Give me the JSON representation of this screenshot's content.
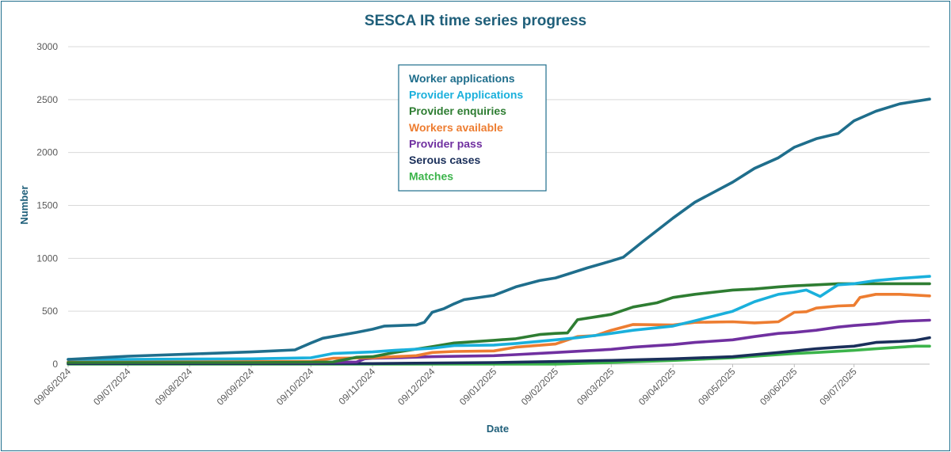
{
  "chart_data": {
    "type": "line",
    "title": "SESCA IR  time series progress",
    "xlabel": "Date",
    "ylabel": "Number",
    "ylim": [
      0,
      3000
    ],
    "yticks": [
      0,
      500,
      1000,
      1500,
      2000,
      2500,
      3000
    ],
    "xlim": [
      "09/06/2024",
      "16/08/2025"
    ],
    "xticks": [
      "09/06/2024",
      "09/07/2024",
      "09/08/2024",
      "09/09/2024",
      "09/10/2024",
      "09/11/2024",
      "09/12/2024",
      "09/01/2025",
      "09/02/2025",
      "09/03/2025",
      "09/04/2025",
      "09/05/2025",
      "09/06/2025",
      "09/07/2025"
    ],
    "grid": "horizontal",
    "legend_position": "top-center",
    "series": [
      {
        "name": "Worker applications",
        "color": "#1f6e8c",
        "points": [
          [
            "09/06/2024",
            45
          ],
          [
            "09/07/2024",
            75
          ],
          [
            "09/08/2024",
            95
          ],
          [
            "09/09/2024",
            115
          ],
          [
            "01/10/2024",
            135
          ],
          [
            "09/10/2024",
            200
          ],
          [
            "15/10/2024",
            245
          ],
          [
            "01/11/2024",
            300
          ],
          [
            "09/11/2024",
            330
          ],
          [
            "15/11/2024",
            360
          ],
          [
            "01/12/2024",
            370
          ],
          [
            "05/12/2024",
            395
          ],
          [
            "09/12/2024",
            490
          ],
          [
            "15/12/2024",
            525
          ],
          [
            "20/12/2024",
            570
          ],
          [
            "25/12/2024",
            610
          ],
          [
            "09/01/2025",
            650
          ],
          [
            "20/01/2025",
            730
          ],
          [
            "01/02/2025",
            790
          ],
          [
            "09/02/2025",
            815
          ],
          [
            "15/02/2025",
            850
          ],
          [
            "25/02/2025",
            910
          ],
          [
            "09/03/2025",
            975
          ],
          [
            "15/03/2025",
            1010
          ],
          [
            "25/03/2025",
            1160
          ],
          [
            "09/04/2025",
            1380
          ],
          [
            "20/04/2025",
            1530
          ],
          [
            "01/05/2025",
            1640
          ],
          [
            "09/05/2025",
            1720
          ],
          [
            "20/05/2025",
            1850
          ],
          [
            "01/06/2025",
            1950
          ],
          [
            "09/06/2025",
            2050
          ],
          [
            "20/06/2025",
            2130
          ],
          [
            "01/07/2025",
            2180
          ],
          [
            "09/07/2025",
            2300
          ],
          [
            "20/07/2025",
            2390
          ],
          [
            "01/08/2025",
            2460
          ],
          [
            "16/08/2025",
            2505
          ]
        ]
      },
      {
        "name": "Provider Applications",
        "color": "#1ab0dc",
        "points": [
          [
            "09/06/2024",
            45
          ],
          [
            "09/07/2024",
            45
          ],
          [
            "09/08/2024",
            48
          ],
          [
            "09/09/2024",
            50
          ],
          [
            "09/10/2024",
            60
          ],
          [
            "20/10/2024",
            100
          ],
          [
            "09/11/2024",
            115
          ],
          [
            "20/11/2024",
            130
          ],
          [
            "09/12/2024",
            150
          ],
          [
            "20/12/2024",
            175
          ],
          [
            "09/01/2025",
            180
          ],
          [
            "20/01/2025",
            195
          ],
          [
            "09/02/2025",
            230
          ],
          [
            "20/02/2025",
            250
          ],
          [
            "09/03/2025",
            290
          ],
          [
            "20/03/2025",
            320
          ],
          [
            "09/04/2025",
            360
          ],
          [
            "20/04/2025",
            410
          ],
          [
            "09/05/2025",
            500
          ],
          [
            "20/05/2025",
            590
          ],
          [
            "01/06/2025",
            660
          ],
          [
            "09/06/2025",
            680
          ],
          [
            "15/06/2025",
            700
          ],
          [
            "22/06/2025",
            640
          ],
          [
            "01/07/2025",
            750
          ],
          [
            "09/07/2025",
            760
          ],
          [
            "20/07/2025",
            790
          ],
          [
            "01/08/2025",
            810
          ],
          [
            "16/08/2025",
            830
          ]
        ]
      },
      {
        "name": "Provider enquiries",
        "color": "#2e7d32",
        "points": [
          [
            "09/06/2024",
            15
          ],
          [
            "09/09/2024",
            15
          ],
          [
            "20/10/2024",
            20
          ],
          [
            "01/11/2024",
            65
          ],
          [
            "09/11/2024",
            70
          ],
          [
            "20/11/2024",
            110
          ],
          [
            "09/12/2024",
            165
          ],
          [
            "20/12/2024",
            200
          ],
          [
            "09/01/2025",
            225
          ],
          [
            "20/01/2025",
            240
          ],
          [
            "01/02/2025",
            280
          ],
          [
            "09/02/2025",
            290
          ],
          [
            "15/02/2025",
            295
          ],
          [
            "20/02/2025",
            420
          ],
          [
            "09/03/2025",
            470
          ],
          [
            "20/03/2025",
            540
          ],
          [
            "01/04/2025",
            580
          ],
          [
            "09/04/2025",
            630
          ],
          [
            "20/04/2025",
            660
          ],
          [
            "09/05/2025",
            700
          ],
          [
            "20/05/2025",
            710
          ],
          [
            "01/06/2025",
            730
          ],
          [
            "09/06/2025",
            740
          ],
          [
            "20/06/2025",
            750
          ],
          [
            "01/07/2025",
            760
          ],
          [
            "16/08/2025",
            760
          ]
        ]
      },
      {
        "name": "Workers available",
        "color": "#ed7d31",
        "points": [
          [
            "09/06/2024",
            20
          ],
          [
            "09/10/2024",
            25
          ],
          [
            "20/10/2024",
            55
          ],
          [
            "09/11/2024",
            60
          ],
          [
            "20/11/2024",
            70
          ],
          [
            "01/12/2024",
            80
          ],
          [
            "09/12/2024",
            110
          ],
          [
            "20/12/2024",
            120
          ],
          [
            "09/01/2025",
            125
          ],
          [
            "20/01/2025",
            160
          ],
          [
            "09/02/2025",
            190
          ],
          [
            "20/02/2025",
            260
          ],
          [
            "01/03/2025",
            270
          ],
          [
            "09/03/2025",
            320
          ],
          [
            "20/03/2025",
            375
          ],
          [
            "09/04/2025",
            370
          ],
          [
            "20/04/2025",
            395
          ],
          [
            "09/05/2025",
            400
          ],
          [
            "20/05/2025",
            390
          ],
          [
            "01/06/2025",
            400
          ],
          [
            "09/06/2025",
            490
          ],
          [
            "15/06/2025",
            495
          ],
          [
            "20/06/2025",
            530
          ],
          [
            "01/07/2025",
            550
          ],
          [
            "09/07/2025",
            555
          ],
          [
            "12/07/2025",
            630
          ],
          [
            "20/07/2025",
            660
          ],
          [
            "01/08/2025",
            660
          ],
          [
            "16/08/2025",
            645
          ]
        ]
      },
      {
        "name": "Provider pass",
        "color": "#7030a0",
        "points": [
          [
            "09/06/2024",
            15
          ],
          [
            "09/10/2024",
            15
          ],
          [
            "01/11/2024",
            20
          ],
          [
            "05/11/2024",
            50
          ],
          [
            "09/11/2024",
            55
          ],
          [
            "20/11/2024",
            60
          ],
          [
            "09/12/2024",
            70
          ],
          [
            "09/01/2025",
            80
          ],
          [
            "20/01/2025",
            90
          ],
          [
            "09/02/2025",
            110
          ],
          [
            "09/03/2025",
            140
          ],
          [
            "20/03/2025",
            160
          ],
          [
            "01/04/2025",
            175
          ],
          [
            "09/04/2025",
            185
          ],
          [
            "20/04/2025",
            205
          ],
          [
            "09/05/2025",
            230
          ],
          [
            "20/05/2025",
            260
          ],
          [
            "01/06/2025",
            290
          ],
          [
            "09/06/2025",
            300
          ],
          [
            "20/06/2025",
            320
          ],
          [
            "01/07/2025",
            350
          ],
          [
            "09/07/2025",
            365
          ],
          [
            "20/07/2025",
            380
          ],
          [
            "01/08/2025",
            405
          ],
          [
            "16/08/2025",
            415
          ]
        ]
      },
      {
        "name": "Serous cases",
        "color": "#1a2f5a",
        "points": [
          [
            "09/06/2024",
            5
          ],
          [
            "09/11/2024",
            5
          ],
          [
            "09/01/2025",
            15
          ],
          [
            "09/02/2025",
            25
          ],
          [
            "09/03/2025",
            35
          ],
          [
            "09/04/2025",
            50
          ],
          [
            "09/05/2025",
            70
          ],
          [
            "20/05/2025",
            90
          ],
          [
            "01/06/2025",
            110
          ],
          [
            "09/06/2025",
            125
          ],
          [
            "20/06/2025",
            145
          ],
          [
            "01/07/2025",
            160
          ],
          [
            "09/07/2025",
            170
          ],
          [
            "20/07/2025",
            205
          ],
          [
            "01/08/2025",
            215
          ],
          [
            "09/08/2025",
            225
          ],
          [
            "16/08/2025",
            250
          ]
        ]
      },
      {
        "name": "Matches",
        "color": "#3cb44b",
        "points": [
          [
            "09/06/2024",
            0
          ],
          [
            "09/02/2025",
            0
          ],
          [
            "09/03/2025",
            15
          ],
          [
            "09/04/2025",
            35
          ],
          [
            "09/05/2025",
            60
          ],
          [
            "01/06/2025",
            90
          ],
          [
            "09/06/2025",
            100
          ],
          [
            "20/06/2025",
            110
          ],
          [
            "09/07/2025",
            130
          ],
          [
            "20/07/2025",
            145
          ],
          [
            "01/08/2025",
            160
          ],
          [
            "09/08/2025",
            170
          ],
          [
            "16/08/2025",
            170
          ]
        ]
      }
    ]
  }
}
